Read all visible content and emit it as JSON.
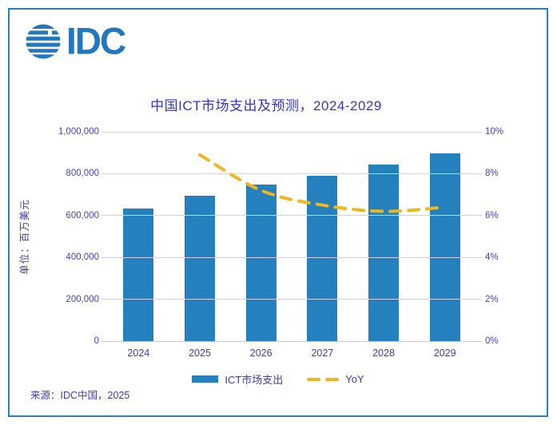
{
  "logo": {
    "text": "IDC",
    "color": "#2278be"
  },
  "header": {
    "title": "中国ICT市场支出及预测，2024-2029"
  },
  "footer": {
    "source": "来源：IDC中国，2025"
  },
  "chart_data": {
    "type": "bar",
    "title": "中国ICT市场支出及预测，2024-2029",
    "categories": [
      "2024",
      "2025",
      "2026",
      "2027",
      "2028",
      "2029"
    ],
    "series": [
      {
        "name": "ICT市场支出",
        "type": "bar",
        "axis": "left",
        "values": [
          635000,
          695000,
          747000,
          792000,
          843000,
          896000
        ],
        "color": "#2580be"
      },
      {
        "name": "YoY",
        "type": "line",
        "style": "dashed",
        "axis": "right",
        "values": [
          null,
          8.9,
          7.2,
          6.5,
          6.2,
          6.4
        ],
        "color": "#edb71f"
      }
    ],
    "left_axis": {
      "label": "单位：百万美元",
      "min": 0,
      "max": 1000000,
      "step": 200000,
      "tick_labels": [
        "0",
        "200,000",
        "400,000",
        "600,000",
        "800,000",
        "1,000,000"
      ]
    },
    "right_axis": {
      "min": 0,
      "max": 10,
      "step": 2,
      "tick_labels": [
        "0%",
        "2%",
        "4%",
        "6%",
        "8%",
        "10%"
      ]
    },
    "grid": true,
    "legend_position": "bottom",
    "source": "来源：IDC中国，2025"
  }
}
